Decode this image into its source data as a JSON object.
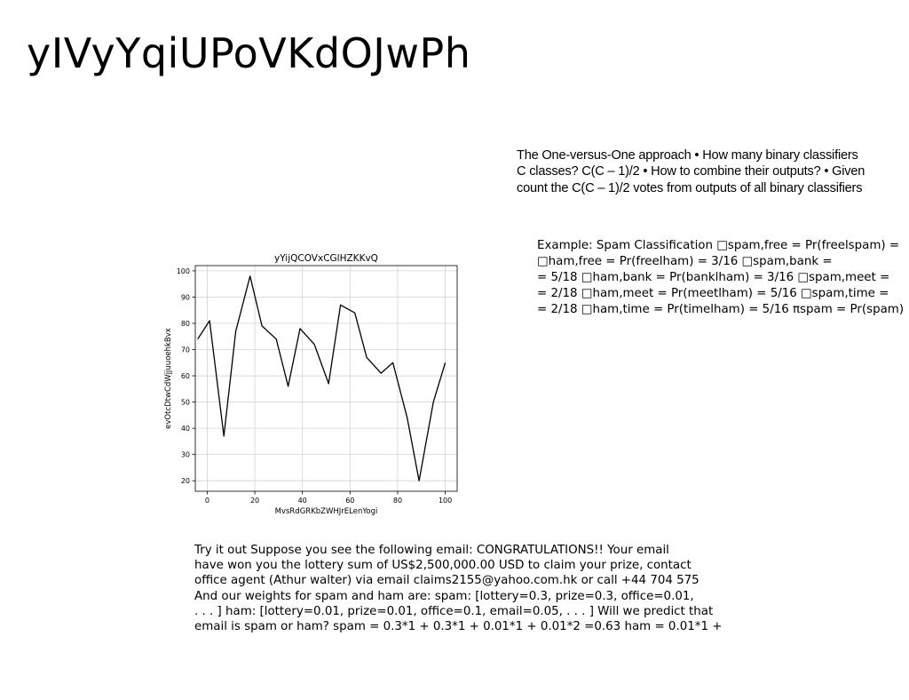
{
  "slide": {
    "title": "yIVyYqiUPoVKdOJwPh"
  },
  "one_vs_one": {
    "lines": [
      "The One-versus-One approach • How many binary classifiers",
      "C classes? C(C – 1)/2 • How to combine their outputs? • Given",
      "count the C(C – 1)/2 votes from outputs of all binary classifiers"
    ]
  },
  "spam_example": {
    "lines": [
      "Example: Spam Classification □spam,free = Pr(freelspam) =",
      "□ham,free = Pr(freelham) = 3/16 □spam,bank =",
      "= 5/18 □ham,bank = Pr(banklham) = 3/16 □spam,meet =",
      "= 2/18 □ham,meet = Pr(meetlham) = 5/16 □spam,time =",
      "= 2/18 □ham,time = Pr(timelham) = 5/16 πspam = Pr(spam)"
    ]
  },
  "try_it": {
    "lines": [
      "Try it out Suppose you see the following email: CONGRATULATIONS!! Your email",
      "have won you the lottery sum of US$2,500,000.00 USD to claim your prize, contact",
      "office agent (Athur walter) via email claims2155@yahoo.com.hk or call +44 704 575",
      "And our weights for spam and ham are: spam: [lottery=0.3, prize=0.3, office=0.01,",
      ". . . ] ham: [lottery=0.01, prize=0.01, office=0.1, email=0.05, . . . ] Will we predict that",
      "email is spam or ham? spam = 0.3*1 + 0.3*1 + 0.01*1 + 0.01*2 =0.63 ham = 0.01*1 +"
    ]
  },
  "chart_data": {
    "type": "line",
    "title": "yYijQCOVxCGlHZKKvQ",
    "xlabel": "MvsRdGRKbZWHJrELenYogi",
    "ylabel": "evOtcDtwCdWjjuuoehkBvx",
    "xlim": [
      -5,
      105
    ],
    "ylim": [
      16,
      102
    ],
    "xticks": [
      0,
      20,
      40,
      60,
      80,
      100
    ],
    "yticks": [
      20,
      30,
      40,
      50,
      60,
      70,
      80,
      90,
      100
    ],
    "grid": true,
    "series": [
      {
        "color": "#000000",
        "x": [
          -4,
          1,
          7,
          12,
          18,
          23,
          29,
          34,
          39,
          45,
          51,
          56,
          62,
          67,
          73,
          78,
          84,
          89,
          95,
          100
        ],
        "y": [
          74,
          81,
          37,
          77,
          98,
          79,
          74,
          56,
          78,
          72,
          57,
          87,
          84,
          67,
          61,
          65,
          44,
          20,
          50,
          65
        ]
      }
    ]
  }
}
